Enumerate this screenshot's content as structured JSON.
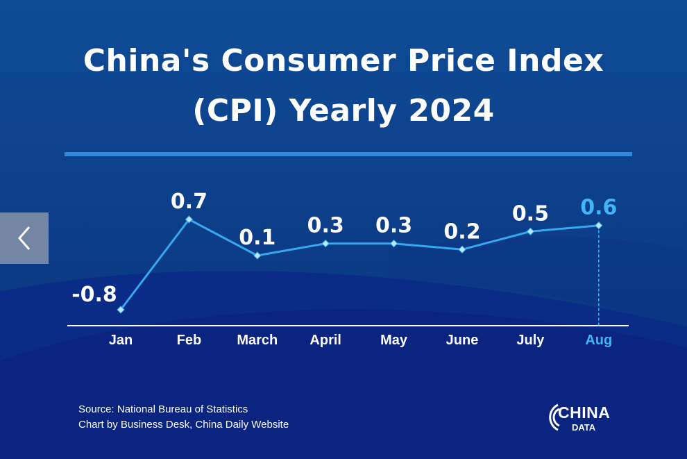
{
  "header": {
    "title_line1": "China's Consumer Price Index",
    "title_line2": "(CPI) Yearly 2024"
  },
  "footer": {
    "source": "Source: National Bureau of Statistics",
    "credit": "Chart by Business Desk, China Daily Website"
  },
  "logo": {
    "main": "CHINA",
    "sub": "DATA"
  },
  "nav": {
    "back_icon": "chevron-left-icon"
  },
  "colors": {
    "background": "#0d3d86",
    "line": "#35a8f0",
    "highlight": "#3fb5f5",
    "text": "#ffffff"
  },
  "chart_data": {
    "type": "line",
    "categories": [
      "Jan",
      "Feb",
      "March",
      "April",
      "May",
      "June",
      "July",
      "Aug"
    ],
    "values": [
      -0.8,
      0.7,
      0.1,
      0.3,
      0.3,
      0.2,
      0.5,
      0.6
    ],
    "data_labels": [
      "-0.8",
      "0.7",
      "0.1",
      "0.3",
      "0.3",
      "0.2",
      "0.5",
      "0.6"
    ],
    "highlight_index": 7,
    "ylim": [
      -0.8,
      0.7
    ],
    "grid": false,
    "legend": "none"
  }
}
